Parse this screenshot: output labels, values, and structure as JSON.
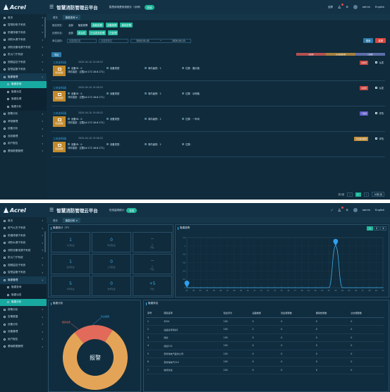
{
  "app": {
    "title": "智慧消防管理云平台",
    "logo_text": "Acrel"
  },
  "panel1": {
    "system_label": "智慧用电是系统统计（示例）",
    "system_pill": "在线",
    "header_right": [
      "全屏",
      "消息",
      "设置",
      "admin",
      "English"
    ],
    "tabs": [
      {
        "label": "首页"
      },
      {
        "label": "隐患查询 ×"
      }
    ],
    "sidebar": [
      {
        "label": "首页",
        "kind": "item"
      },
      {
        "label": "智慧用电子系统",
        "kind": "item"
      },
      {
        "label": "防烟排烟子系统",
        "kind": "item"
      },
      {
        "label": "消防水源子系统",
        "kind": "item"
      },
      {
        "label": "消防设备电源子系统",
        "kind": "item"
      },
      {
        "label": "防火门子系统",
        "kind": "item"
      },
      {
        "label": "视频监控子系统",
        "kind": "item"
      },
      {
        "label": "智慧监管子系统",
        "kind": "item"
      },
      {
        "label": "隐患管理",
        "kind": "group"
      },
      {
        "label": "隐患查询",
        "kind": "active"
      },
      {
        "label": "隐患派发",
        "kind": "sub"
      },
      {
        "label": "隐患处理",
        "kind": "sub"
      },
      {
        "label": "隐患分析",
        "kind": "sub"
      },
      {
        "label": "报警分析",
        "kind": "item"
      },
      {
        "label": "考勤管理",
        "kind": "item"
      },
      {
        "label": "设备分析",
        "kind": "item"
      },
      {
        "label": "巡检管理",
        "kind": "item"
      },
      {
        "label": "用户报告",
        "kind": "item"
      },
      {
        "label": "基础数据管理",
        "kind": "item"
      }
    ],
    "filters": {
      "row1": {
        "label": "隐患类型：",
        "options": [
          "全部",
          "隐患报警",
          "能耗告警",
          "设备故障",
          "离线告警"
        ]
      },
      "row2": {
        "label": "处理状态：",
        "options": [
          "全部",
          "未派发",
          "已派发未处理",
          "已处理"
        ]
      },
      "row3": {
        "label": "单位选择：",
        "select1_placeholder": "请选择区域",
        "select2_placeholder": "请选择单位",
        "date_from": "2020-01-01",
        "date_sep": "~",
        "date_to": "2020-04-10",
        "search_label": "搜索",
        "reset_label": "重置"
      }
    },
    "export_label": "导出",
    "legend": [
      "未处理",
      "已派发未处理",
      "已处理"
    ],
    "cards": [
      {
        "name": "江苏安科瑞",
        "time": "2020-04-10 15:08:22",
        "icon_label": "隐患报警",
        "device_id": "设备ID：0",
        "device_type": "设备类型：",
        "count": "事件级别：2",
        "location": "位置：展示路",
        "desc": "详情描述：过载(id:172.16.6.171)",
        "tag": "未处理",
        "action": "派发"
      },
      {
        "name": "江苏安科瑞",
        "time": "2020-04-10 15:08:22",
        "icon_label": "隐患报警",
        "device_id": "设备ID：0",
        "device_type": "设备类型：",
        "count": "事件级别：2",
        "location": "位置：示例路",
        "desc": "详情描述：过载(id:172.16.6.171)",
        "tag": "未处理",
        "action": "派发"
      },
      {
        "name": "江苏安科瑞",
        "time": "2020-04-10 15:08:22",
        "icon_label": "隐患报警",
        "device_id": "设备ID：0",
        "device_type": "设备类型：",
        "count": "事件级别：2",
        "location": "位置：一车间",
        "desc": "详情描述：过载(id:172.16.6.171)",
        "tag": "已处理",
        "action": "详情"
      },
      {
        "name": "江苏安科瑞",
        "time": "2020-04-10 15:08:22",
        "icon_label": "隐患报警",
        "device_id": "设备ID：0",
        "device_type": "设备类型：",
        "count": "事件级别：2",
        "location": "位置：",
        "desc": "详情描述：过载(id:172.16.6.171)",
        "tag": "已派发未处理",
        "action": "详情"
      }
    ],
    "pager": {
      "total": "共1页",
      "page": "1",
      "size": "10条/页"
    }
  },
  "panel2": {
    "system_label": "在线监测统计",
    "system_pill": "在线",
    "tabs": [
      {
        "label": "首页"
      },
      {
        "label": "隐患分析 ×"
      }
    ],
    "sidebar": [
      {
        "label": "首页",
        "kind": "item"
      },
      {
        "label": "电气火灾子系统",
        "kind": "item"
      },
      {
        "label": "防烟排烟子系统",
        "kind": "item"
      },
      {
        "label": "消防水源子系统",
        "kind": "item"
      },
      {
        "label": "消防设备电源子系统",
        "kind": "item"
      },
      {
        "label": "防火门子系统",
        "kind": "item"
      },
      {
        "label": "视频监控子系统",
        "kind": "item"
      },
      {
        "label": "智慧监管子系统",
        "kind": "item"
      },
      {
        "label": "隐患管理",
        "kind": "group"
      },
      {
        "label": "隐患查询",
        "kind": "sub"
      },
      {
        "label": "隐患派发",
        "kind": "sub"
      },
      {
        "label": "隐患分析",
        "kind": "active"
      },
      {
        "label": "报警分析",
        "kind": "item"
      },
      {
        "label": "告警数据",
        "kind": "item"
      },
      {
        "label": "设备分析",
        "kind": "item"
      },
      {
        "label": "设备管理",
        "kind": "item"
      },
      {
        "label": "用户报告",
        "kind": "item"
      },
      {
        "label": "基础数据管理",
        "kind": "item"
      }
    ],
    "stats_title": "隐患统计（个）",
    "stats": [
      {
        "value": "1",
        "label": "今日隐患",
        "label2": ""
      },
      {
        "value": "0",
        "label": "昨日隐患",
        "label2": ""
      },
      {
        "value": "--",
        "label": "环比",
        "label2": "0"
      },
      {
        "value": "1",
        "label": "当月隐患",
        "label2": ""
      },
      {
        "value": "0",
        "label": "上月隐患",
        "label2": ""
      },
      {
        "value": "--",
        "label": "环比",
        "label2": "0"
      },
      {
        "value": "5",
        "label": "今年隐患",
        "label2": ""
      },
      {
        "value": "0",
        "label": "去年隐患",
        "label2": ""
      },
      {
        "value": "+5",
        "label": "环比",
        "label2": ""
      }
    ],
    "trend_title": "隐患趋势",
    "trend_tabs": [
      "日",
      "月",
      "年"
    ],
    "analysis_title": "隐患分析",
    "donut_center": "报警",
    "donut_labels": [
      "能耗告警",
      "隐患报警"
    ],
    "rank_title": "隐患排名",
    "table_headers": [
      "序号",
      "项目名称",
      "隐患评分",
      "设备数量",
      "隐患报警数",
      "能耗告警数",
      "过去报警数"
    ],
    "table_rows": [
      [
        "1",
        "4324",
        "100",
        "0",
        "0",
        "0",
        "0"
      ],
      [
        "2",
        "设备名称测试1",
        "100",
        "2",
        "0",
        "0",
        "0"
      ],
      [
        "3",
        "测试",
        "100",
        "0",
        "0",
        "0",
        "0"
      ],
      [
        "4",
        "测试213",
        "100",
        "0",
        "0",
        "0",
        "0"
      ],
      [
        "5",
        "安科瑞电气股份公司",
        "100",
        "0",
        "0",
        "0",
        "0"
      ],
      [
        "6",
        "安科瑞电气214",
        "100",
        "0",
        "0",
        "0",
        "0"
      ],
      [
        "7",
        "新增测试",
        "100",
        "0",
        "0",
        "0",
        "0"
      ]
    ]
  },
  "chart_data": [
    {
      "type": "line",
      "title": "隐患趋势",
      "categories": [
        "01",
        "02",
        "03",
        "04",
        "05",
        "06",
        "07",
        "08",
        "09",
        "10",
        "11",
        "12",
        "13",
        "14",
        "15",
        "16",
        "17",
        "18",
        "19",
        "20",
        "21",
        "22",
        "23",
        "24",
        "25",
        "26",
        "27",
        "28",
        "29",
        "30"
      ],
      "values": [
        0,
        0,
        0,
        0,
        0,
        0,
        0,
        0,
        0,
        0,
        0,
        0,
        0,
        0,
        0,
        0,
        0,
        0,
        0,
        0,
        0,
        0,
        1,
        0,
        0,
        0,
        0,
        0,
        0,
        0
      ],
      "ylim": [
        0,
        1.2
      ],
      "yticks": [
        "0",
        "0.2",
        "0.4",
        "0.6",
        "0.8",
        "1",
        "1.2"
      ],
      "markers": [
        {
          "x": "01",
          "y": 0
        },
        {
          "x": "23",
          "y": 1
        }
      ]
    },
    {
      "type": "pie",
      "labels": [
        "能耗告警",
        "隐患报警"
      ],
      "values": [
        20,
        80
      ],
      "center_label": "报警",
      "colors": [
        "#e26a5a",
        "#e4a457"
      ]
    }
  ],
  "colors": {
    "accent": "#1fb59a",
    "tag_red": "#c9433c",
    "tag_blue": "#5c59c4",
    "tag_gold": "#c08c3a",
    "legend1": "#b35050",
    "legend2": "#a6803e",
    "legend3": "#5e6ea8",
    "line": "#3da7e0",
    "btn_blue": "#2c7aa8",
    "btn_red": "#d9463f"
  }
}
